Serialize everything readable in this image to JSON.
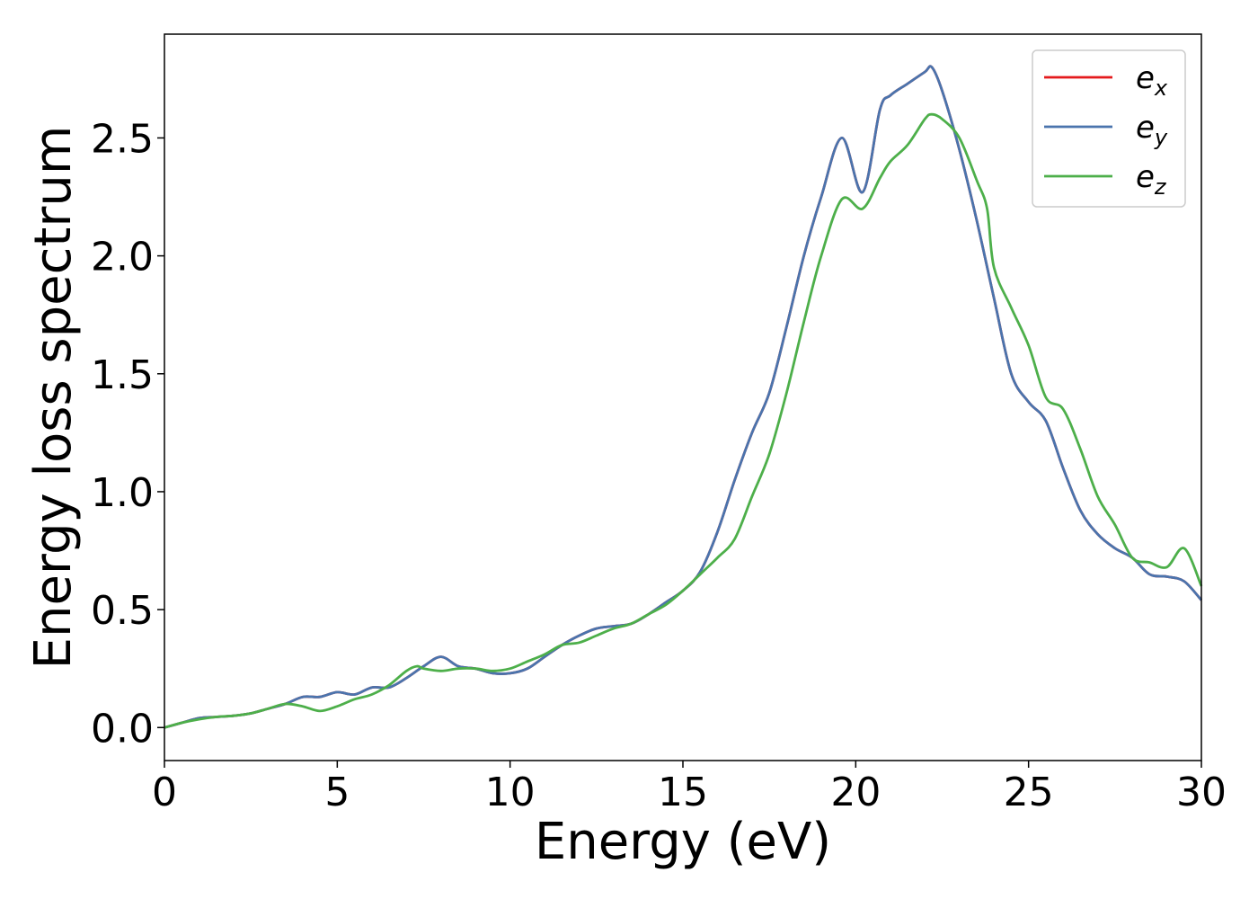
{
  "chart_data": {
    "type": "line",
    "title": "",
    "xlabel": "Energy (eV)",
    "ylabel": "Energy loss spectrum",
    "xlim": [
      0,
      30
    ],
    "ylim": [
      -0.14,
      2.94
    ],
    "xticks": [
      0,
      5,
      10,
      15,
      20,
      25,
      30
    ],
    "xtick_labels": [
      "0",
      "5",
      "10",
      "15",
      "20",
      "25",
      "30"
    ],
    "yticks": [
      0.0,
      0.5,
      1.0,
      1.5,
      2.0,
      2.5
    ],
    "ytick_labels": [
      "0.0",
      "0.5",
      "1.0",
      "1.5",
      "2.0",
      "2.5"
    ],
    "grid": false,
    "legend_position": "top-right",
    "series": [
      {
        "name": "e_x",
        "legend_main": "e",
        "legend_sub": "x",
        "color": "#e41a1c",
        "x": [
          0,
          0.5,
          1.0,
          1.5,
          2.0,
          2.5,
          3.0,
          3.5,
          4.0,
          4.5,
          5.0,
          5.5,
          6.0,
          6.5,
          7.0,
          7.5,
          8.0,
          8.5,
          9.0,
          9.5,
          10.0,
          10.5,
          11.0,
          11.5,
          12.0,
          12.5,
          13.0,
          13.5,
          14.0,
          14.5,
          15.0,
          15.5,
          16.0,
          16.5,
          17.0,
          17.5,
          18.0,
          18.5,
          19.0,
          19.6,
          20.2,
          20.7,
          21.0,
          21.5,
          22.0,
          22.2,
          22.5,
          23.0,
          23.5,
          24.0,
          24.5,
          25.0,
          25.5,
          26.0,
          26.5,
          27.0,
          27.5,
          28.0,
          28.5,
          29.0,
          29.5,
          30.0
        ],
        "y": [
          0.0,
          0.02,
          0.04,
          0.045,
          0.05,
          0.06,
          0.08,
          0.1,
          0.13,
          0.13,
          0.15,
          0.14,
          0.17,
          0.17,
          0.21,
          0.26,
          0.3,
          0.26,
          0.25,
          0.23,
          0.23,
          0.25,
          0.3,
          0.35,
          0.39,
          0.42,
          0.43,
          0.44,
          0.48,
          0.53,
          0.58,
          0.66,
          0.83,
          1.05,
          1.25,
          1.42,
          1.7,
          2.0,
          2.25,
          2.5,
          2.27,
          2.62,
          2.68,
          2.73,
          2.78,
          2.8,
          2.7,
          2.45,
          2.15,
          1.82,
          1.5,
          1.38,
          1.3,
          1.1,
          0.92,
          0.82,
          0.76,
          0.72,
          0.65,
          0.64,
          0.62,
          0.54
        ]
      },
      {
        "name": "e_y",
        "legend_main": "e",
        "legend_sub": "y",
        "color": "#4a74ad",
        "x": [
          0,
          0.5,
          1.0,
          1.5,
          2.0,
          2.5,
          3.0,
          3.5,
          4.0,
          4.5,
          5.0,
          5.5,
          6.0,
          6.5,
          7.0,
          7.5,
          8.0,
          8.5,
          9.0,
          9.5,
          10.0,
          10.5,
          11.0,
          11.5,
          12.0,
          12.5,
          13.0,
          13.5,
          14.0,
          14.5,
          15.0,
          15.5,
          16.0,
          16.5,
          17.0,
          17.5,
          18.0,
          18.5,
          19.0,
          19.6,
          20.2,
          20.7,
          21.0,
          21.5,
          22.0,
          22.2,
          22.5,
          23.0,
          23.5,
          24.0,
          24.5,
          25.0,
          25.5,
          26.0,
          26.5,
          27.0,
          27.5,
          28.0,
          28.5,
          29.0,
          29.5,
          30.0
        ],
        "y": [
          0.0,
          0.02,
          0.04,
          0.045,
          0.05,
          0.06,
          0.08,
          0.1,
          0.13,
          0.13,
          0.15,
          0.14,
          0.17,
          0.17,
          0.21,
          0.26,
          0.3,
          0.26,
          0.25,
          0.23,
          0.23,
          0.25,
          0.3,
          0.35,
          0.39,
          0.42,
          0.43,
          0.44,
          0.48,
          0.53,
          0.58,
          0.66,
          0.83,
          1.05,
          1.25,
          1.42,
          1.7,
          2.0,
          2.25,
          2.5,
          2.27,
          2.62,
          2.68,
          2.73,
          2.78,
          2.8,
          2.7,
          2.45,
          2.15,
          1.82,
          1.5,
          1.38,
          1.3,
          1.1,
          0.92,
          0.82,
          0.76,
          0.72,
          0.65,
          0.64,
          0.62,
          0.54
        ]
      },
      {
        "name": "e_z",
        "legend_main": "e",
        "legend_sub": "z",
        "color": "#4daf4a",
        "x": [
          0,
          0.5,
          1.0,
          1.5,
          2.0,
          2.5,
          3.0,
          3.5,
          4.0,
          4.5,
          5.0,
          5.5,
          6.0,
          6.5,
          7.0,
          7.3,
          7.5,
          8.0,
          8.5,
          9.0,
          9.5,
          10.0,
          10.5,
          11.0,
          11.5,
          12.0,
          12.5,
          13.0,
          13.5,
          14.0,
          14.5,
          15.0,
          15.5,
          16.0,
          16.5,
          17.0,
          17.5,
          18.0,
          18.5,
          19.0,
          19.6,
          20.2,
          20.7,
          21.0,
          21.5,
          22.0,
          22.2,
          22.5,
          23.0,
          23.5,
          23.8,
          24.0,
          24.5,
          25.0,
          25.5,
          26.0,
          26.5,
          27.0,
          27.5,
          28.0,
          28.5,
          29.0,
          29.5,
          30.0
        ],
        "y": [
          0.0,
          0.02,
          0.035,
          0.045,
          0.05,
          0.06,
          0.08,
          0.1,
          0.09,
          0.07,
          0.09,
          0.12,
          0.14,
          0.18,
          0.24,
          0.26,
          0.25,
          0.24,
          0.25,
          0.25,
          0.24,
          0.25,
          0.28,
          0.31,
          0.35,
          0.36,
          0.39,
          0.42,
          0.44,
          0.48,
          0.52,
          0.58,
          0.65,
          0.72,
          0.8,
          0.98,
          1.16,
          1.42,
          1.72,
          2.0,
          2.24,
          2.2,
          2.33,
          2.4,
          2.47,
          2.58,
          2.6,
          2.58,
          2.5,
          2.32,
          2.2,
          1.95,
          1.78,
          1.62,
          1.4,
          1.35,
          1.18,
          0.98,
          0.86,
          0.72,
          0.7,
          0.68,
          0.76,
          0.6
        ]
      }
    ]
  }
}
